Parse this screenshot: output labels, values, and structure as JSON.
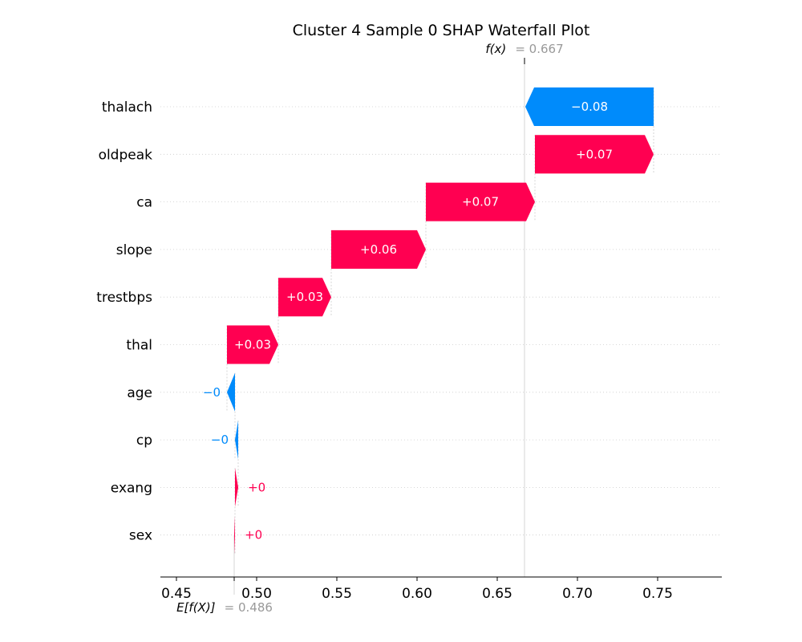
{
  "chart_data": {
    "type": "waterfall",
    "title": "Cluster 4 Sample 0 SHAP Waterfall Plot",
    "base_value": 0.486,
    "output_value": 0.667,
    "base_label": "E[f(X)]",
    "base_value_text": "= 0.486",
    "output_label": "f(x)",
    "output_value_text": "= 0.667",
    "xlim": [
      0.44,
      0.79
    ],
    "xticks": [
      0.45,
      0.5,
      0.55,
      0.6,
      0.65,
      0.7,
      0.75
    ],
    "xtick_labels": [
      "0.45",
      "0.50",
      "0.55",
      "0.60",
      "0.65",
      "0.70",
      "0.75"
    ],
    "grid": "dotted horizontal",
    "colors": {
      "positive": "#ff0051",
      "negative": "#008bfb",
      "annotation": "#999999"
    },
    "features": [
      {
        "name": "thalach",
        "value": -0.08,
        "label": "−0.08"
      },
      {
        "name": "oldpeak",
        "value": 0.074,
        "label": "+0.07"
      },
      {
        "name": "ca",
        "value": 0.068,
        "label": "+0.07"
      },
      {
        "name": "slope",
        "value": 0.059,
        "label": "+0.06"
      },
      {
        "name": "trestbps",
        "value": 0.033,
        "label": "+0.03"
      },
      {
        "name": "thal",
        "value": 0.032,
        "label": "+0.03"
      },
      {
        "name": "age",
        "value": -0.005,
        "label": "−0"
      },
      {
        "name": "cp",
        "value": -0.002,
        "label": "−0"
      },
      {
        "name": "exang",
        "value": 0.002,
        "label": "+0"
      },
      {
        "name": "sex",
        "value": 0.0005,
        "label": "+0"
      }
    ]
  }
}
